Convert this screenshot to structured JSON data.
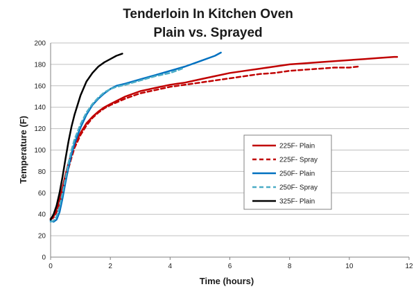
{
  "chart_data": {
    "type": "line",
    "title": "Tenderloin In Kitchen Oven",
    "subtitle": "Plain vs. Sprayed",
    "xlabel": "Time (hours)",
    "ylabel": "Temperature (F)",
    "xlim": [
      0,
      12
    ],
    "ylim": [
      0,
      200
    ],
    "xticks": [
      "0",
      "2",
      "4",
      "6",
      "8",
      "10",
      "12"
    ],
    "yticks": [
      "0",
      "20",
      "40",
      "60",
      "80",
      "100",
      "120",
      "140",
      "160",
      "180",
      "200"
    ],
    "grid": "horizontal",
    "legend_position": "right-center",
    "series": [
      {
        "name": "225F- Plain",
        "color": "#c00000",
        "dash": "solid",
        "x": [
          0,
          0.1,
          0.2,
          0.3,
          0.4,
          0.5,
          0.6,
          0.7,
          0.8,
          1.0,
          1.2,
          1.4,
          1.6,
          1.8,
          2.0,
          2.5,
          3.0,
          3.5,
          4.0,
          4.5,
          5.0,
          5.5,
          6.0,
          6.5,
          7.0,
          7.5,
          8.0,
          8.5,
          9.0,
          9.5,
          10.0,
          10.5,
          11.0,
          11.5,
          11.6
        ],
        "y": [
          36,
          38,
          45,
          55,
          65,
          77,
          88,
          97,
          105,
          116,
          125,
          131,
          136,
          140,
          143,
          150,
          155,
          158,
          161,
          163,
          166,
          169,
          172,
          174,
          176,
          178,
          180,
          181,
          182,
          183,
          184,
          185,
          186,
          187,
          187
        ]
      },
      {
        "name": "225F- Spray",
        "color": "#c00000",
        "dash": "dashed",
        "x": [
          0,
          0.1,
          0.2,
          0.3,
          0.4,
          0.5,
          0.6,
          0.7,
          0.8,
          1.0,
          1.2,
          1.4,
          1.6,
          1.8,
          2.0,
          2.5,
          3.0,
          3.5,
          4.0,
          4.5,
          5.0,
          5.5,
          6.0,
          6.5,
          7.0,
          7.5,
          8.0,
          8.5,
          9.0,
          9.5,
          10.0,
          10.3
        ],
        "y": [
          35,
          37,
          42,
          50,
          60,
          72,
          83,
          93,
          102,
          114,
          123,
          130,
          135,
          139,
          142,
          148,
          153,
          156,
          159,
          161,
          163,
          165,
          167,
          169,
          171,
          172,
          174,
          175,
          176,
          177,
          177,
          178
        ]
      },
      {
        "name": "250F- Plain",
        "color": "#0070c0",
        "dash": "solid",
        "x": [
          0,
          0.1,
          0.2,
          0.3,
          0.4,
          0.5,
          0.6,
          0.7,
          0.8,
          1.0,
          1.2,
          1.4,
          1.6,
          1.8,
          2.0,
          2.2,
          2.5,
          3.0,
          3.5,
          4.0,
          4.5,
          5.0,
          5.5,
          5.7
        ],
        "y": [
          34,
          33,
          35,
          42,
          55,
          70,
          84,
          96,
          106,
          121,
          133,
          142,
          148,
          153,
          157,
          160,
          162,
          166,
          170,
          174,
          178,
          183,
          188,
          191
        ]
      },
      {
        "name": "250F- Spray",
        "color": "#4bacc6",
        "dash": "dashed",
        "x": [
          0,
          0.1,
          0.2,
          0.3,
          0.4,
          0.5,
          0.6,
          0.7,
          0.8,
          1.0,
          1.2,
          1.4,
          1.6,
          1.8,
          2.0,
          2.2,
          2.5,
          3.0,
          3.5,
          4.0,
          4.4
        ],
        "y": [
          33,
          34,
          38,
          47,
          60,
          74,
          88,
          100,
          110,
          124,
          135,
          143,
          149,
          154,
          157,
          159,
          161,
          165,
          169,
          172,
          176
        ]
      },
      {
        "name": "325F- Plain",
        "color": "#000000",
        "dash": "solid",
        "x": [
          0,
          0.1,
          0.2,
          0.3,
          0.4,
          0.5,
          0.6,
          0.7,
          0.8,
          1.0,
          1.2,
          1.4,
          1.6,
          1.8,
          2.0,
          2.2,
          2.4
        ],
        "y": [
          35,
          40,
          48,
          60,
          75,
          92,
          108,
          122,
          133,
          151,
          164,
          172,
          178,
          182,
          185,
          188,
          190
        ]
      }
    ]
  }
}
